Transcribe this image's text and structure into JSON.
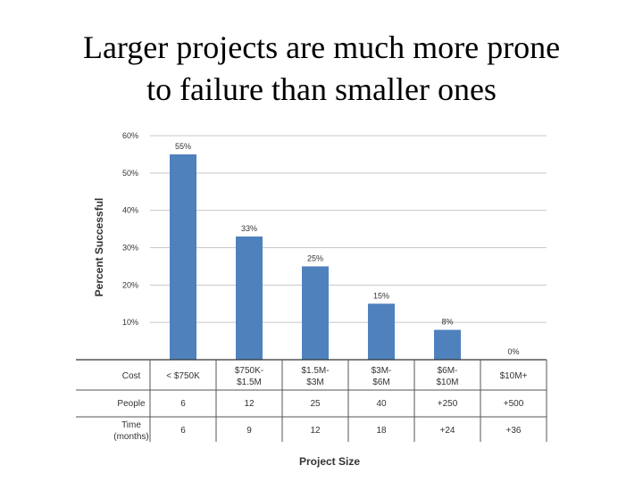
{
  "slide": {
    "title_line1": "Larger projects are much more prone",
    "title_line2": "to failure than smaller ones"
  },
  "chart_data": {
    "type": "bar",
    "ylabel": "Percent Successful",
    "xlabel": "Project Size",
    "ylim": [
      0,
      60
    ],
    "yticks": [
      "10%",
      "20%",
      "30%",
      "40%",
      "50%",
      "60%"
    ],
    "ytick_values": [
      10,
      20,
      30,
      40,
      50,
      60
    ],
    "grid": true,
    "series_color": "#4f81bd",
    "values": [
      55,
      33,
      25,
      15,
      8,
      0
    ],
    "value_labels": [
      "55%",
      "33%",
      "25%",
      "15%",
      "8%",
      "0%"
    ],
    "table": {
      "row_labels": [
        "Cost",
        "People",
        "Time\n(months)"
      ],
      "row_label_lines": [
        [
          "Cost"
        ],
        [
          "People"
        ],
        [
          "Time",
          "(months)"
        ]
      ],
      "columns": [
        {
          "cost": [
            "< $750K"
          ],
          "people": "6",
          "time": "6"
        },
        {
          "cost": [
            "$750K-",
            "$1.5M"
          ],
          "people": "12",
          "time": "9"
        },
        {
          "cost": [
            "$1.5M-",
            "$3M"
          ],
          "people": "25",
          "time": "12"
        },
        {
          "cost": [
            "$3M-",
            "$6M"
          ],
          "people": "40",
          "time": "18"
        },
        {
          "cost": [
            "$6M-",
            "$10M"
          ],
          "people": "+250",
          "time": "+24"
        },
        {
          "cost": [
            "$10M+"
          ],
          "people": "+500",
          "time": "+36"
        }
      ]
    }
  }
}
